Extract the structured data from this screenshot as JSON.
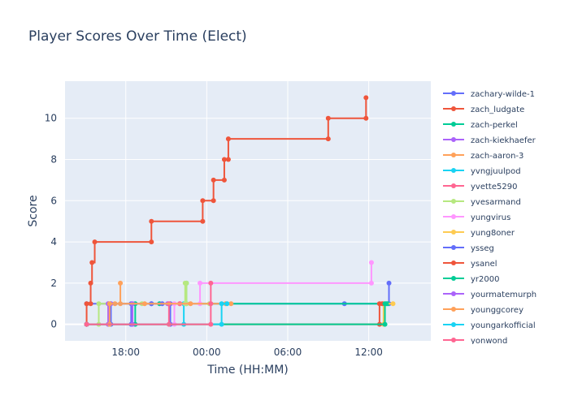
{
  "chart_data": {
    "type": "line",
    "line_shape": "step-after",
    "title": "Player Scores Over Time (Elect)",
    "xlabel": "Time (HH:MM)",
    "ylabel": "Score",
    "x_ticks": [
      {
        "label": "18:00",
        "hours": 18
      },
      {
        "label": "00:00",
        "hours": 24
      },
      {
        "label": "06:00",
        "hours": 30
      },
      {
        "label": "12:00",
        "hours": 36
      }
    ],
    "xlim_hours": [
      13.5,
      40.6
    ],
    "ylim": [
      -0.8,
      11.8
    ],
    "y_ticks": [
      0,
      2,
      4,
      6,
      8,
      10
    ],
    "grid": true,
    "legend_position": "right",
    "background": "#e5ecf6",
    "series": [
      {
        "name": "zachary-wilde-1",
        "color": "#636efa",
        "points": [
          [
            15.1,
            1
          ],
          [
            18.4,
            1
          ],
          [
            18.4,
            0
          ],
          [
            21.3,
            0
          ],
          [
            21.3,
            1
          ],
          [
            34.2,
            1
          ],
          [
            37.5,
            1
          ],
          [
            37.5,
            2
          ]
        ]
      },
      {
        "name": "zach_ludgate",
        "color": "#ef553b",
        "points": [
          [
            15.1,
            0
          ],
          [
            15.1,
            1
          ],
          [
            15.4,
            1
          ],
          [
            15.4,
            2
          ],
          [
            15.5,
            3
          ],
          [
            15.7,
            4
          ],
          [
            19.9,
            4
          ],
          [
            19.9,
            5
          ],
          [
            23.7,
            5
          ],
          [
            23.7,
            6
          ],
          [
            24.5,
            6
          ],
          [
            24.5,
            7
          ],
          [
            25.3,
            7
          ],
          [
            25.3,
            8
          ],
          [
            25.6,
            8
          ],
          [
            25.6,
            9
          ],
          [
            33.0,
            9
          ],
          [
            33.0,
            10
          ],
          [
            35.8,
            10
          ],
          [
            35.8,
            11
          ]
        ]
      },
      {
        "name": "zach-perkel",
        "color": "#00cc96",
        "points": [
          [
            15.1,
            0
          ],
          [
            18.7,
            0
          ],
          [
            18.7,
            1
          ],
          [
            20.5,
            1
          ],
          [
            37.4,
            1
          ]
        ]
      },
      {
        "name": "zach-kiekhaefer",
        "color": "#ab63fa",
        "points": [
          [
            15.1,
            0
          ],
          [
            18.5,
            0
          ],
          [
            18.5,
            1
          ],
          [
            21.1,
            1
          ]
        ]
      },
      {
        "name": "zach-aaron-3",
        "color": "#ffa15a",
        "points": [
          [
            15.1,
            0
          ],
          [
            16.7,
            0
          ],
          [
            16.7,
            1
          ],
          [
            17.2,
            1
          ],
          [
            17.6,
            1
          ],
          [
            17.6,
            2
          ]
        ]
      },
      {
        "name": "yvngjuulpod",
        "color": "#19d3f3",
        "points": [
          [
            15.1,
            0
          ],
          [
            22.3,
            0
          ],
          [
            22.3,
            1
          ],
          [
            22.5,
            1
          ],
          [
            22.5,
            2
          ]
        ]
      },
      {
        "name": "yvette5290",
        "color": "#ff6692",
        "points": [
          [
            15.1,
            0
          ],
          [
            21.2,
            0
          ],
          [
            21.2,
            1
          ],
          [
            22.0,
            1
          ],
          [
            22.0,
            1
          ]
        ]
      },
      {
        "name": "yvesarmand",
        "color": "#b6e880",
        "points": [
          [
            15.1,
            0
          ],
          [
            16.0,
            0
          ],
          [
            16.0,
            1
          ],
          [
            19.2,
            1
          ],
          [
            22.4,
            1
          ],
          [
            22.4,
            2
          ],
          [
            22.5,
            2
          ],
          [
            22.5,
            1
          ],
          [
            24.2,
            1
          ]
        ]
      },
      {
        "name": "yungvirus",
        "color": "#ff97ff",
        "points": [
          [
            15.1,
            0
          ],
          [
            21.6,
            0
          ],
          [
            21.6,
            1
          ],
          [
            23.5,
            1
          ],
          [
            23.5,
            2
          ],
          [
            36.2,
            2
          ],
          [
            36.2,
            3
          ]
        ]
      },
      {
        "name": "yung8oner",
        "color": "#fecb52",
        "points": [
          [
            15.1,
            0
          ],
          [
            37.1,
            0
          ],
          [
            37.1,
            1
          ],
          [
            37.8,
            1
          ]
        ]
      },
      {
        "name": "ysseg",
        "color": "#636efa",
        "points": [
          [
            15.1,
            0
          ],
          [
            16.9,
            0
          ],
          [
            16.9,
            1
          ],
          [
            19.9,
            1
          ],
          [
            19.9,
            1
          ],
          [
            20.7,
            1
          ]
        ]
      },
      {
        "name": "ysanel",
        "color": "#ef553b",
        "points": [
          [
            15.1,
            0
          ],
          [
            36.8,
            0
          ],
          [
            36.8,
            1
          ],
          [
            37.0,
            1
          ]
        ]
      },
      {
        "name": "yr2000",
        "color": "#00cc96",
        "points": [
          [
            15.1,
            0
          ],
          [
            37.2,
            0
          ],
          [
            37.2,
            1
          ],
          [
            37.3,
            1
          ]
        ]
      },
      {
        "name": "yourmatemurph",
        "color": "#ab63fa",
        "points": [
          [
            15.1,
            0
          ],
          [
            16.7,
            0
          ],
          [
            16.7,
            1
          ],
          [
            16.9,
            1
          ]
        ]
      },
      {
        "name": "younggcorey",
        "color": "#ffa15a",
        "points": [
          [
            15.1,
            0
          ],
          [
            16.8,
            0
          ],
          [
            16.8,
            1
          ],
          [
            19.4,
            1
          ],
          [
            22.8,
            1
          ],
          [
            25.4,
            1
          ],
          [
            25.8,
            1
          ]
        ]
      },
      {
        "name": "youngarkofficial",
        "color": "#19d3f3",
        "points": [
          [
            15.1,
            0
          ],
          [
            25.1,
            0
          ],
          [
            25.1,
            1
          ],
          [
            25.5,
            1
          ]
        ]
      },
      {
        "name": "yonwond",
        "color": "#ff6692",
        "points": [
          [
            15.1,
            0
          ],
          [
            24.3,
            0
          ],
          [
            24.3,
            1
          ],
          [
            24.3,
            2
          ]
        ]
      }
    ]
  }
}
